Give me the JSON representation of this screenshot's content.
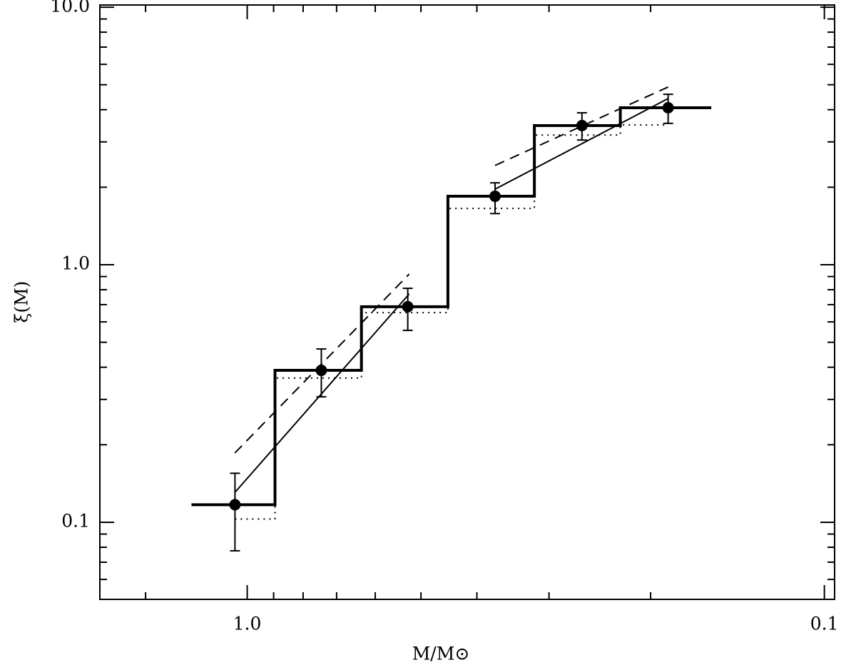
{
  "chart_data": {
    "type": "line",
    "xlabel": "M/M⊙",
    "ylabel": "ξ(M)",
    "xlog": true,
    "ylog": true,
    "xlim": [
      1.8,
      0.096
    ],
    "ylim": [
      0.0502,
      10.2
    ],
    "xticks": [
      {
        "value": 1,
        "label": "1.0"
      },
      {
        "value": 0.1,
        "label": "0.1"
      }
    ],
    "xminorticks": [
      1.5,
      0.9,
      0.8,
      0.7,
      0.6,
      0.5,
      0.4,
      0.3,
      0.2
    ],
    "yticks": [
      {
        "value": 0.1,
        "label": "0.1"
      },
      {
        "value": 1,
        "label": "1.0"
      },
      {
        "value": 10,
        "label": "10.0"
      }
    ],
    "yminorticks": [
      0.06,
      0.07,
      0.08,
      0.09,
      0.2,
      0.3,
      0.4,
      0.5,
      0.6,
      0.7,
      0.8,
      0.9,
      2,
      3,
      4,
      5,
      6,
      7,
      8,
      9
    ],
    "color": "#000000",
    "points": {
      "x": [
        1.05,
        0.744,
        0.527,
        0.372,
        0.263,
        0.1865
      ],
      "values": [
        0.117,
        0.389,
        0.687,
        1.845,
        3.47,
        4.07
      ],
      "y_low": [
        0.0775,
        0.307,
        0.556,
        1.58,
        3.05,
        3.54
      ],
      "y_high": [
        0.155,
        0.471,
        0.81,
        2.08,
        3.89,
        4.59
      ]
    },
    "steps": [
      {
        "style": "solid",
        "edges": [
          1.249,
          0.895,
          0.634,
          0.449,
          0.318,
          0.2257,
          0.157
        ],
        "values": [
          0.117,
          0.389,
          0.687,
          1.845,
          3.47,
          4.07
        ]
      },
      {
        "style": "dotted",
        "edges": [
          1.05,
          0.895,
          0.634,
          0.449,
          0.318,
          0.2257,
          0.1865
        ],
        "values": [
          0.103,
          0.363,
          0.652,
          1.655,
          3.19,
          3.49
        ]
      }
    ],
    "lines": [
      {
        "style": "solid",
        "x": [
          1.05,
          0.524
        ],
        "values": [
          0.1307,
          0.77
        ]
      },
      {
        "style": "solid",
        "x": [
          0.372,
          0.1865
        ],
        "values": [
          1.966,
          4.42
        ]
      },
      {
        "style": "dashed",
        "x": [
          1.05,
          0.524
        ],
        "values": [
          0.186,
          0.92
        ]
      },
      {
        "style": "dashed",
        "x": [
          0.372,
          0.1865
        ],
        "values": [
          2.43,
          4.9
        ]
      }
    ]
  }
}
